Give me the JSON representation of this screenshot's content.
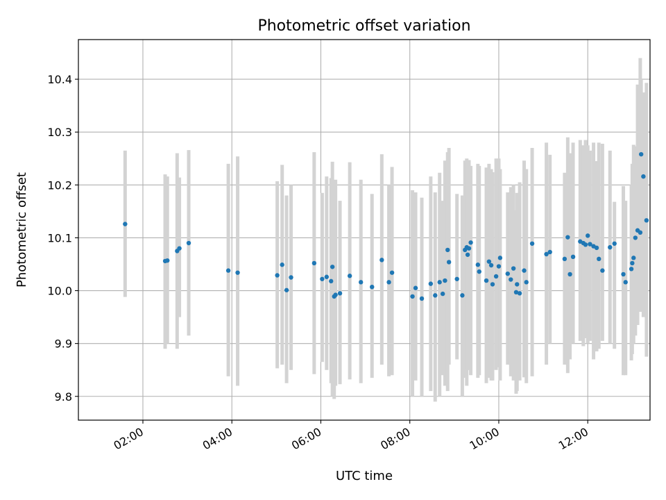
{
  "chart_data": {
    "type": "scatter",
    "title": "Photometric offset variation",
    "xlabel": "UTC time",
    "ylabel": "Photometric offset",
    "x_unit": "hours (UTC)",
    "xlim": [
      0.55,
      13.4
    ],
    "ylim": [
      9.755,
      10.475
    ],
    "grid": true,
    "x_ticks": [
      {
        "value": 2,
        "label": "02:00"
      },
      {
        "value": 4,
        "label": "04:00"
      },
      {
        "value": 6,
        "label": "06:00"
      },
      {
        "value": 8,
        "label": "08:00"
      },
      {
        "value": 10,
        "label": "10:00"
      },
      {
        "value": 12,
        "label": "12:00"
      }
    ],
    "y_ticks": [
      {
        "value": 9.8,
        "label": "9.8"
      },
      {
        "value": 9.9,
        "label": "9.9"
      },
      {
        "value": 10.0,
        "label": "10.0"
      },
      {
        "value": 10.1,
        "label": "10.1"
      },
      {
        "value": 10.2,
        "label": "10.2"
      },
      {
        "value": 10.3,
        "label": "10.3"
      },
      {
        "value": 10.4,
        "label": "10.4"
      }
    ],
    "colors": {
      "point": "#1f77b4",
      "error_bar": "#d3d3d3",
      "grid": "#b0b0b0"
    },
    "series": [
      {
        "x": [
          1.6,
          2.5,
          2.55,
          2.77,
          2.82,
          3.03,
          3.92,
          4.13,
          5.02,
          5.13,
          5.23,
          5.33,
          5.85,
          6.03,
          6.13,
          6.23,
          6.26,
          6.3,
          6.33,
          6.43,
          6.65,
          6.9,
          7.15,
          7.37,
          7.53,
          7.6,
          8.06,
          8.13,
          8.27,
          8.47,
          8.57,
          8.67,
          8.74,
          8.79,
          8.85,
          8.88,
          9.06,
          9.18,
          9.24,
          9.28,
          9.3,
          9.33,
          9.37,
          9.53,
          9.56,
          9.72,
          9.78,
          9.83,
          9.86,
          9.94,
          10.0,
          10.03,
          10.2,
          10.27,
          10.33,
          10.39,
          10.41,
          10.47,
          10.57,
          10.62,
          10.75,
          11.07,
          11.15,
          11.48,
          11.55,
          11.6,
          11.67,
          11.83,
          11.9,
          11.95,
          12.0,
          12.05,
          12.13,
          12.2,
          12.25,
          12.33,
          12.5,
          12.6,
          12.8,
          12.85,
          12.98,
          13.0,
          13.03,
          13.07,
          13.12,
          13.18,
          13.2,
          13.25,
          13.32
        ],
        "y": [
          10.126,
          10.056,
          10.057,
          10.075,
          10.08,
          10.09,
          10.038,
          10.034,
          10.029,
          10.049,
          10.001,
          10.025,
          10.052,
          10.022,
          10.026,
          10.018,
          10.045,
          9.989,
          9.992,
          9.995,
          10.028,
          10.016,
          10.007,
          10.058,
          10.016,
          10.034,
          9.989,
          10.005,
          9.985,
          10.013,
          9.991,
          10.016,
          9.994,
          10.019,
          10.077,
          10.054,
          10.022,
          9.991,
          10.077,
          10.082,
          10.068,
          10.08,
          10.091,
          10.049,
          10.036,
          10.019,
          10.055,
          10.048,
          10.012,
          10.027,
          10.046,
          10.062,
          10.032,
          10.021,
          10.042,
          9.997,
          10.012,
          9.995,
          10.038,
          10.016,
          10.089,
          10.069,
          10.073,
          10.06,
          10.101,
          10.031,
          10.064,
          10.093,
          10.09,
          10.087,
          10.104,
          10.088,
          10.084,
          10.081,
          10.06,
          10.038,
          10.082,
          10.089,
          10.031,
          10.016,
          10.041,
          10.052,
          10.062,
          10.1,
          10.114,
          10.11,
          10.258,
          10.216,
          10.133
        ],
        "err_low": [
          9.988,
          9.89,
          9.9,
          9.89,
          9.95,
          9.915,
          9.838,
          9.82,
          9.853,
          9.86,
          9.825,
          9.85,
          9.842,
          9.865,
          9.85,
          9.825,
          9.8,
          9.795,
          9.82,
          9.823,
          9.832,
          9.825,
          9.835,
          9.86,
          9.838,
          9.84,
          9.8,
          9.83,
          9.8,
          9.81,
          9.79,
          9.8,
          9.84,
          9.82,
          9.81,
          9.86,
          9.87,
          9.8,
          9.835,
          9.82,
          9.85,
          9.85,
          9.84,
          9.835,
          9.84,
          9.825,
          9.835,
          9.83,
          9.83,
          9.85,
          9.855,
          9.83,
          9.86,
          9.838,
          9.83,
          9.805,
          9.81,
          9.83,
          9.836,
          9.825,
          9.838,
          9.86,
          9.9,
          9.86,
          9.844,
          9.87,
          9.9,
          9.905,
          9.895,
          9.91,
          9.9,
          9.905,
          9.87,
          9.885,
          9.89,
          9.905,
          9.9,
          9.89,
          9.84,
          9.84,
          9.868,
          9.88,
          9.9,
          9.915,
          9.935,
          9.96,
          9.995,
          9.95,
          9.875
        ],
        "err_high": [
          10.265,
          10.22,
          10.216,
          10.26,
          10.214,
          10.266,
          10.24,
          10.254,
          10.207,
          10.238,
          10.18,
          10.2,
          10.262,
          10.185,
          10.216,
          10.213,
          10.244,
          10.185,
          10.21,
          10.17,
          10.243,
          10.21,
          10.183,
          10.258,
          10.2,
          10.234,
          10.19,
          10.186,
          10.176,
          10.216,
          10.186,
          10.223,
          10.17,
          10.246,
          10.262,
          10.27,
          10.183,
          10.18,
          10.246,
          10.25,
          10.243,
          10.247,
          10.236,
          10.24,
          10.236,
          10.233,
          10.24,
          10.23,
          10.224,
          10.25,
          10.25,
          10.23,
          10.186,
          10.196,
          10.2,
          10.152,
          10.185,
          10.205,
          10.246,
          10.23,
          10.27,
          10.28,
          10.257,
          10.223,
          10.29,
          10.26,
          10.28,
          10.285,
          10.275,
          10.285,
          10.275,
          10.265,
          10.28,
          10.245,
          10.28,
          10.278,
          10.265,
          10.168,
          10.198,
          10.17,
          10.2,
          10.24,
          10.276,
          10.273,
          10.39,
          10.44,
          10.4,
          10.375,
          10.393
        ]
      }
    ]
  }
}
